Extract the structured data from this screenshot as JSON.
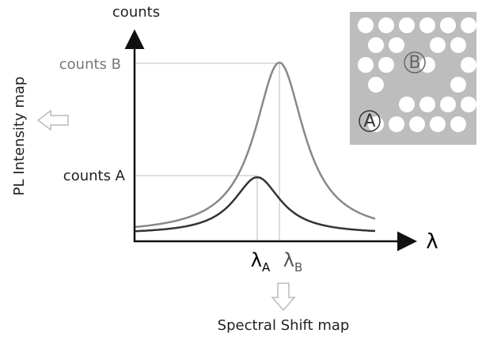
{
  "axes": {
    "y_label": "counts",
    "x_label": "λ"
  },
  "levels": [
    {
      "label": "counts B"
    },
    {
      "label": "counts A"
    }
  ],
  "peaks": [
    {
      "symbol": "λ",
      "subscript": "A"
    },
    {
      "symbol": "λ",
      "subscript": "B"
    }
  ],
  "outputs": {
    "left": "PL Intensity map",
    "bottom": "Spectral Shift map"
  },
  "inset": {
    "sites": [
      "A",
      "B"
    ]
  }
}
